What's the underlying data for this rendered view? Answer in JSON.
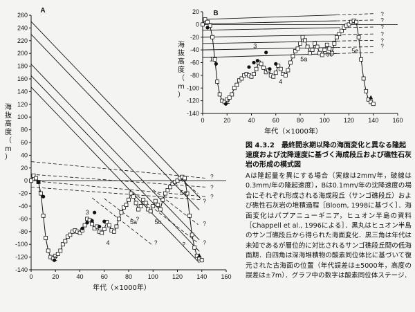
{
  "figure": {
    "caption_title": "図 4.3.2　最終間氷期以降の海面変化と異なる隆起速度および沈降速度に基づく海成段丘および礁性石灰岩の形成の模式図",
    "caption_body": "Aは隆起量を異にする場合（実線は2mm/年，破線は0.3mm/年の隆起速度），Bは0.1mm/年の沈降速度の場合にそれぞれ形成される海成段丘（サンゴ礁段丘）および礁性石灰岩の堆積過程［Bloom, 1998に基づく］．海面変化はパプアニューギニア，ヒュオン半島の資料［Chappell et al., 1996による］．黒丸はヒュオン半島のサンゴ礁段丘から得られた海面変化．黒三角は年代は未知であるが層位的に対比されるサンゴ礁段丘間の低海面期．白四角は深海堆積物の酸素同位体比に基づいて復元された古海面の位置（年代誤差は±5000年，高度の誤差は±7m）．グラフ中の数字は酸素同位体ステージ．"
  },
  "chart_data": [
    {
      "panel": "A",
      "type": "line",
      "xlabel": "年代（×1000年）",
      "ylabel": "海抜高度（m）",
      "xlim": [
        0,
        160
      ],
      "ylim": [
        -140,
        260
      ],
      "xticks": [
        0,
        20,
        40,
        60,
        80,
        100,
        120,
        140,
        160
      ],
      "yticks": [
        260,
        240,
        220,
        200,
        180,
        160,
        140,
        120,
        100,
        80,
        60,
        40,
        20,
        0,
        -20,
        -40,
        -60,
        -80,
        -100,
        -120,
        -140
      ],
      "stage_labels": [
        {
          "text": "1",
          "x": 7,
          "y": -17
        },
        {
          "text": "2",
          "x": 20,
          "y": -126
        },
        {
          "text": "3",
          "x": 46,
          "y": -53
        },
        {
          "text": "4",
          "x": 63,
          "y": -101
        },
        {
          "text": "5a",
          "x": 84,
          "y": -68
        },
        {
          "text": "5c",
          "x": 104,
          "y": -68
        },
        {
          "text": "5e",
          "x": 125,
          "y": -22
        }
      ],
      "uplift_lines_solid": [
        {
          "y0": 250,
          "x1": 139,
          "y1": -28
        },
        {
          "y0": 230,
          "x1": 138,
          "y1": -46
        },
        {
          "y0": 183,
          "x1": 138,
          "y1": -93
        },
        {
          "y0": 165,
          "x1": 138,
          "y1": -111
        },
        {
          "y0": 147,
          "x1": 138,
          "y1": -129
        }
      ],
      "uplift_lines_dashed": [
        {
          "y0": 30,
          "x1": 143,
          "y1": 4
        },
        {
          "y0": 10,
          "x1": 143,
          "y1": -10
        },
        {
          "y0": 0,
          "x1": 143,
          "y1": -25
        },
        {
          "y0": -10,
          "x1": 140,
          "y1": -30
        }
      ],
      "dashed_from_curve": [
        {
          "x0": 80,
          "y0": -13,
          "x1": 137,
          "y1": -98
        },
        {
          "x0": 100,
          "y0": -14,
          "x1": 137,
          "y1": -69
        },
        {
          "x0": 122,
          "y0": 2,
          "x1": 137,
          "y1": -20
        },
        {
          "x0": 60,
          "y0": -28,
          "x1": 85,
          "y1": -64
        },
        {
          "x0": 50,
          "y0": -27,
          "x1": 100,
          "y1": -102
        }
      ],
      "sea_level_curve": {
        "x": [
          0,
          2,
          4,
          6,
          8,
          10,
          12,
          14,
          16,
          18,
          20,
          22,
          24,
          26,
          28,
          30,
          32,
          34,
          36,
          38,
          40,
          42,
          44,
          46,
          48,
          50,
          52,
          54,
          56,
          58,
          60,
          62,
          64,
          66,
          68,
          70,
          72,
          74,
          76,
          78,
          80,
          82,
          84,
          86,
          88,
          90,
          92,
          94,
          96,
          98,
          100,
          102,
          104,
          106,
          108,
          110,
          112,
          114,
          116,
          118,
          120,
          122,
          124,
          126,
          128,
          130,
          132,
          134,
          136,
          138,
          140
        ],
        "y": [
          0,
          8,
          4,
          -2,
          -20,
          -55,
          -90,
          -110,
          -120,
          -122,
          -118,
          -115,
          -110,
          -100,
          -95,
          -88,
          -85,
          -80,
          -78,
          -80,
          -82,
          -78,
          -70,
          -60,
          -62,
          -68,
          -75,
          -72,
          -80,
          -82,
          -76,
          -65,
          -70,
          -78,
          -80,
          -72,
          -60,
          -50,
          -42,
          -38,
          -30,
          -20,
          -25,
          -35,
          -45,
          -40,
          -30,
          -35,
          -45,
          -48,
          -40,
          -32,
          -38,
          -45,
          -30,
          -20,
          -15,
          -10,
          -5,
          -2,
          0,
          4,
          6,
          4,
          -20,
          -55,
          -85,
          -105,
          -118,
          -122,
          -125
        ]
      },
      "black_circles": [
        {
          "x": 6,
          "y": -2
        },
        {
          "x": 10,
          "y": -25
        },
        {
          "x": 19,
          "y": -125
        },
        {
          "x": 42,
          "y": -75
        },
        {
          "x": 46,
          "y": -66
        },
        {
          "x": 50,
          "y": -63
        },
        {
          "x": 52,
          "y": -50
        },
        {
          "x": 56,
          "y": -72
        },
        {
          "x": 60,
          "y": -64
        }
      ],
      "black_triangles": [
        {
          "x": 138,
          "y": -118
        }
      ],
      "question_marks": [
        {
          "x": 147,
          "y": 7
        },
        {
          "x": 147,
          "y": -10
        },
        {
          "x": 147,
          "y": -25
        },
        {
          "x": 141,
          "y": -32
        },
        {
          "x": 141,
          "y": -67
        },
        {
          "x": 141,
          "y": -97
        },
        {
          "x": 86,
          "y": -60
        },
        {
          "x": 101,
          "y": -97
        },
        {
          "x": 124,
          "y": -100
        }
      ]
    },
    {
      "panel": "B",
      "type": "line",
      "xlabel": "年代（×1000年）",
      "ylabel": "海抜高度（m）",
      "xlim": [
        0,
        160
      ],
      "ylim": [
        -140,
        20
      ],
      "xticks": [
        0,
        20,
        40,
        60,
        80,
        100,
        120,
        140,
        160
      ],
      "yticks": [
        20,
        0,
        -20,
        -40,
        -60,
        -80,
        -100,
        -120,
        -140
      ],
      "stage_labels": [
        {
          "text": "1",
          "x": 7,
          "y": -58
        },
        {
          "text": "2",
          "x": 21,
          "y": -125
        },
        {
          "text": "3",
          "x": 43,
          "y": -37
        },
        {
          "text": "4",
          "x": 64,
          "y": -93
        },
        {
          "text": "5a",
          "x": 83,
          "y": -58
        },
        {
          "text": "5c",
          "x": 104,
          "y": -50
        },
        {
          "text": "5e",
          "x": 125,
          "y": -45
        }
      ],
      "subsidence_lines": [
        {
          "y0": 8,
          "y1": 17,
          "x1": 140
        },
        {
          "y0": 1,
          "y1": 7,
          "x1": 140
        },
        {
          "y0": -9,
          "y1": -4,
          "x1": 140
        },
        {
          "y0": -20,
          "y1": -15,
          "x1": 140
        },
        {
          "y0": -30,
          "y1": -25,
          "x1": 140
        },
        {
          "y0": -40,
          "y1": -35,
          "x1": 140
        },
        {
          "y0": -52,
          "y1": -44,
          "x1": 140
        }
      ],
      "question_marks": [
        {
          "x": 146,
          "y": 17
        },
        {
          "x": 146,
          "y": 7
        },
        {
          "x": 146,
          "y": -4
        },
        {
          "x": 146,
          "y": -15
        },
        {
          "x": 146,
          "y": -25
        },
        {
          "x": 146,
          "y": -34
        }
      ],
      "black_circles": [
        {
          "x": 4,
          "y": -5
        },
        {
          "x": 11,
          "y": -62
        },
        {
          "x": 19,
          "y": -125
        },
        {
          "x": 38,
          "y": -67
        },
        {
          "x": 42,
          "y": -60
        },
        {
          "x": 45,
          "y": -57
        },
        {
          "x": 52,
          "y": -44
        },
        {
          "x": 55,
          "y": -70
        },
        {
          "x": 60,
          "y": -62
        }
      ],
      "black_triangles": [
        {
          "x": 138,
          "y": -115
        }
      ]
    }
  ]
}
